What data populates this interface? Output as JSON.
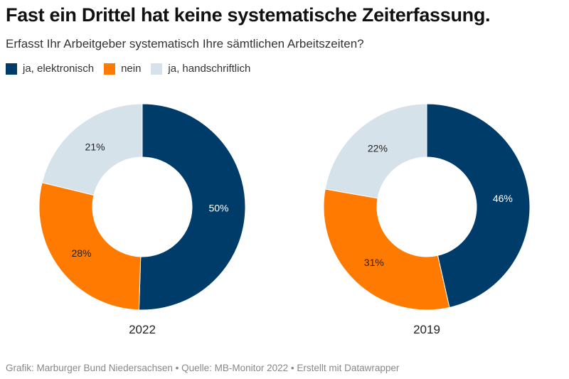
{
  "title": "Fast ein Drittel hat keine systematische Zeiterfassung.",
  "subtitle": "Erfasst Ihr Arbeitgeber systematisch Ihre sämtlichen Arbeitszeiten?",
  "footer": "Grafik: Marburger Bund Niedersachsen • Quelle: MB-Monitor 2022 • Erstellt mit Datawrapper",
  "chart_data": {
    "type": "pie",
    "legend": [
      {
        "label": "ja, elektronisch",
        "color": "#003c6a"
      },
      {
        "label": "nein",
        "color": "#ff7a00"
      },
      {
        "label": "ja, handschriftlich",
        "color": "#d6e2ea"
      }
    ],
    "charts": [
      {
        "label": "2022",
        "values": [
          50,
          28,
          21
        ],
        "value_labels": [
          "50%",
          "28%",
          "21%"
        ]
      },
      {
        "label": "2019",
        "values": [
          46,
          31,
          22
        ],
        "value_labels": [
          "46%",
          "31%",
          "22%"
        ]
      }
    ]
  }
}
